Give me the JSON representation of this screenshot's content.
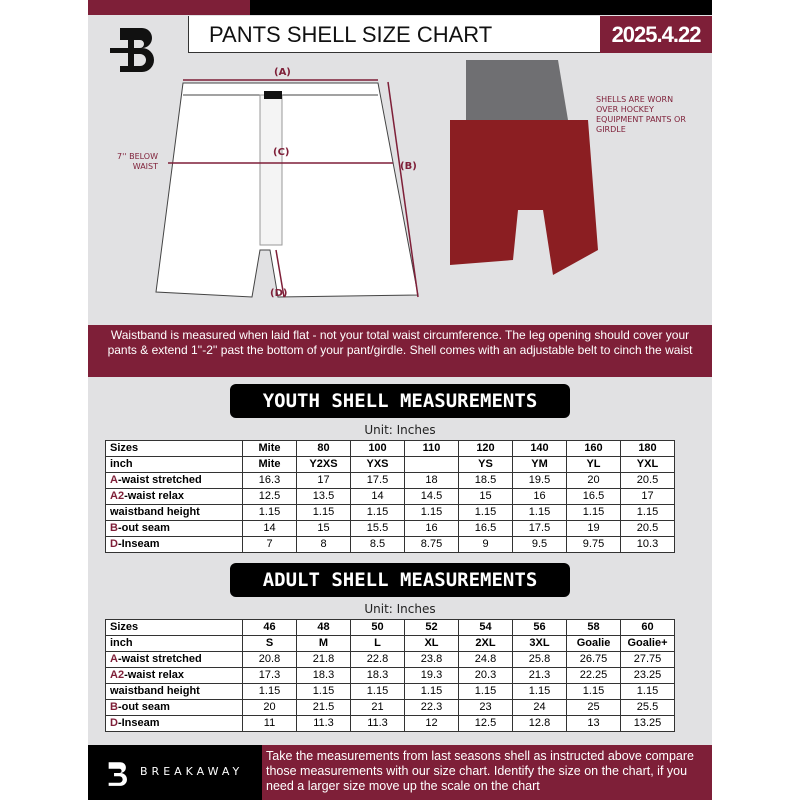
{
  "header": {
    "title": "PANTS SHELL SIZE CHART",
    "date": "2025.4.22"
  },
  "diagram": {
    "label_a": "(A)",
    "label_b": "(B)",
    "label_c": "(C)",
    "label_d": "(D)",
    "below_waist": "7'' BELOW WAIST",
    "shell_note": "SHELLS ARE WORN OVER HOCKEY EQUIPMENT PANTS OR GIRDLE"
  },
  "banner": {
    "text": "Waistband is measured when laid flat - not your total waist circumference. The leg opening should cover your pants & extend 1''-2'' past the bottom of your pant/girdle. Shell comes with an adjustable belt to cinch the waist"
  },
  "youth": {
    "title": "YOUTH SHELL MEASUREMENTS",
    "unit": "Unit: Inches",
    "rows": [
      {
        "p": "",
        "l": "Sizes",
        "v": [
          "Mite",
          "80",
          "100",
          "110",
          "120",
          "140",
          "160",
          "180"
        ]
      },
      {
        "p": "",
        "l": "inch",
        "v": [
          "Mite",
          "Y2XS",
          "YXS",
          "",
          "YS",
          "YM",
          "YL",
          "YXL"
        ]
      },
      {
        "p": "A",
        "l": "-waist stretched",
        "v": [
          "16.3",
          "17",
          "17.5",
          "18",
          "18.5",
          "19.5",
          "20",
          "20.5"
        ]
      },
      {
        "p": "A2",
        "l": "-waist relax",
        "v": [
          "12.5",
          "13.5",
          "14",
          "14.5",
          "15",
          "16",
          "16.5",
          "17"
        ]
      },
      {
        "p": "",
        "l": "waistband height",
        "v": [
          "1.15",
          "1.15",
          "1.15",
          "1.15",
          "1.15",
          "1.15",
          "1.15",
          "1.15"
        ]
      },
      {
        "p": "B",
        "l": "-out seam",
        "v": [
          "14",
          "15",
          "15.5",
          "16",
          "16.5",
          "17.5",
          "19",
          "20.5"
        ]
      },
      {
        "p": "D",
        "l": "-Inseam",
        "v": [
          "7",
          "8",
          "8.5",
          "8.75",
          "9",
          "9.5",
          "9.75",
          "10.3"
        ]
      }
    ]
  },
  "adult": {
    "title": "ADULT SHELL MEASUREMENTS",
    "unit": "Unit: Inches",
    "rows": [
      {
        "p": "",
        "l": "Sizes",
        "v": [
          "46",
          "48",
          "50",
          "52",
          "54",
          "56",
          "58",
          "60"
        ]
      },
      {
        "p": "",
        "l": "inch",
        "v": [
          "S",
          "M",
          "L",
          "XL",
          "2XL",
          "3XL",
          "Goalie",
          "Goalie+"
        ]
      },
      {
        "p": "A",
        "l": "-waist stretched",
        "v": [
          "20.8",
          "21.8",
          "22.8",
          "23.8",
          "24.8",
          "25.8",
          "26.75",
          "27.75"
        ]
      },
      {
        "p": "A2",
        "l": "-waist relax",
        "v": [
          "17.3",
          "18.3",
          "18.3",
          "19.3",
          "20.3",
          "21.3",
          "22.25",
          "23.25"
        ]
      },
      {
        "p": "",
        "l": "waistband height",
        "v": [
          "1.15",
          "1.15",
          "1.15",
          "1.15",
          "1.15",
          "1.15",
          "1.15",
          "1.15"
        ]
      },
      {
        "p": "B",
        "l": "-out seam",
        "v": [
          "20",
          "21.5",
          "21",
          "22.3",
          "23",
          "24",
          "25",
          "25.5"
        ]
      },
      {
        "p": "D",
        "l": "-Inseam",
        "v": [
          "11",
          "11.3",
          "11.3",
          "12",
          "12.5",
          "12.8",
          "13",
          "13.25"
        ]
      }
    ]
  },
  "footer": {
    "brand": "BREAKAWAY",
    "text": "Take the measurements from last seasons shell as instructed above compare those measurements  with our size chart. Identify the size on the chart, if you need a larger size move up the scale on the chart"
  },
  "colors": {
    "accent": "#7e1f38",
    "background": "#e1e1e3"
  }
}
